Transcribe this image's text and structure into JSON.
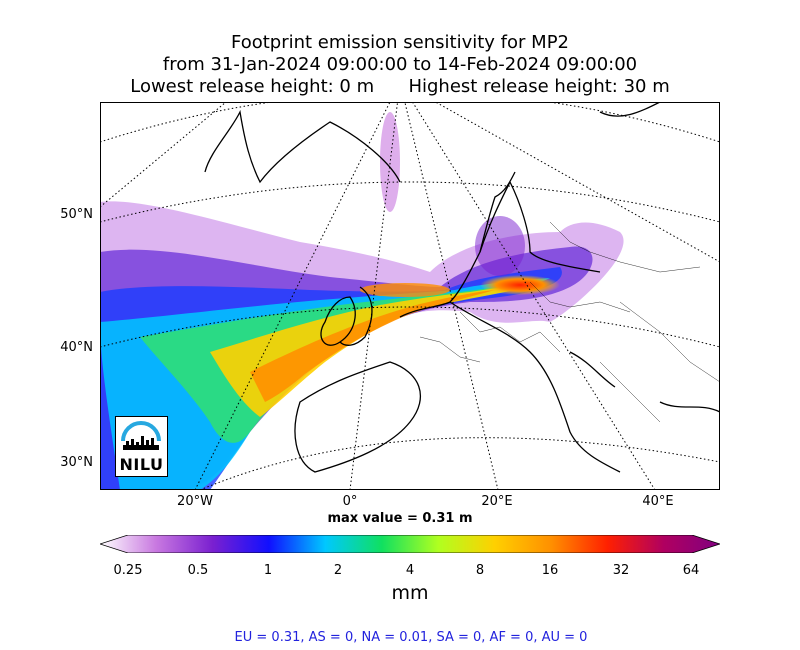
{
  "title": {
    "line1": "Footprint emission sensitivity for MP2",
    "line2": "from 31-Jan-2024 09:00:00 to 14-Feb-2024 09:00:00",
    "line3": "Lowest release height: 0 m      Highest release height: 30 m"
  },
  "map": {
    "lat_labels": [
      "50°N",
      "40°N",
      "30°N"
    ],
    "lon_labels": [
      "20°W",
      "0°",
      "20°E",
      "40°E"
    ],
    "max_label": "max value = 0.31 m"
  },
  "logo": {
    "text": "NILU"
  },
  "colorbar": {
    "ticks": [
      "0.25",
      "0.5",
      "1",
      "2",
      "4",
      "8",
      "16",
      "32",
      "64"
    ],
    "unit": "mm",
    "colors": [
      "#ffffff",
      "#c878e0",
      "#7a20d0",
      "#1010ff",
      "#00c8ff",
      "#10e060",
      "#b0ff20",
      "#ffd000",
      "#ff9000",
      "#ff2000",
      "#b00060",
      "#800080"
    ]
  },
  "summary": "EU = 0.31,  AS = 0,  NA = 0.01,  SA = 0,  AF = 0,  AU = 0"
}
